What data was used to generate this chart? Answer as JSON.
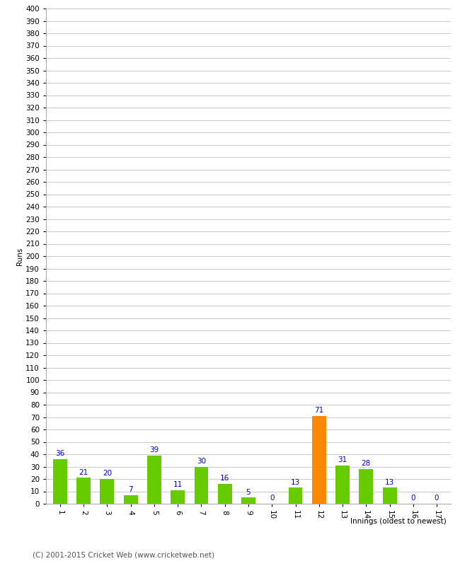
{
  "innings": [
    1,
    2,
    3,
    4,
    5,
    6,
    7,
    8,
    9,
    10,
    11,
    12,
    13,
    14,
    15,
    16,
    17
  ],
  "runs": [
    36,
    21,
    20,
    7,
    39,
    11,
    30,
    16,
    5,
    0,
    13,
    71,
    31,
    28,
    13,
    0,
    0
  ],
  "bar_colors": [
    "#66cc00",
    "#66cc00",
    "#66cc00",
    "#66cc00",
    "#66cc00",
    "#66cc00",
    "#66cc00",
    "#66cc00",
    "#66cc00",
    "#66cc00",
    "#66cc00",
    "#ff8800",
    "#66cc00",
    "#66cc00",
    "#66cc00",
    "#66cc00",
    "#66cc00"
  ],
  "label_color": "#0000cc",
  "ylabel": "Runs",
  "xlabel": "Innings (oldest to newest)",
  "ylim": [
    0,
    400
  ],
  "yticks": [
    0,
    10,
    20,
    30,
    40,
    50,
    60,
    70,
    80,
    90,
    100,
    110,
    120,
    130,
    140,
    150,
    160,
    170,
    180,
    190,
    200,
    210,
    220,
    230,
    240,
    250,
    260,
    270,
    280,
    290,
    300,
    310,
    320,
    330,
    340,
    350,
    360,
    370,
    380,
    390,
    400
  ],
  "grid_color": "#cccccc",
  "bg_color": "#ffffff",
  "footer": "(C) 2001-2015 Cricket Web (www.cricketweb.net)",
  "footer_color": "#555555",
  "label_fontsize": 7.5,
  "axis_tick_fontsize": 7.5,
  "ylabel_fontsize": 7.5,
  "xlabel_fontsize": 7.5,
  "footer_fontsize": 7.5
}
